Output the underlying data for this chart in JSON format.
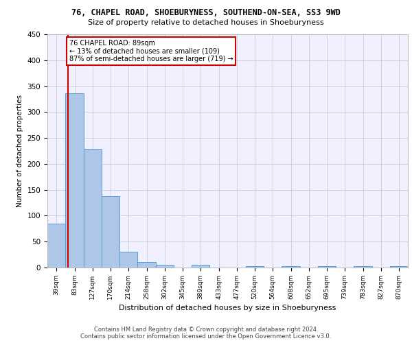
{
  "title_line1": "76, CHAPEL ROAD, SHOEBURYNESS, SOUTHEND-ON-SEA, SS3 9WD",
  "title_line2": "Size of property relative to detached houses in Shoeburyness",
  "xlabel": "Distribution of detached houses by size in Shoeburyness",
  "ylabel": "Number of detached properties",
  "footer_line1": "Contains HM Land Registry data © Crown copyright and database right 2024.",
  "footer_line2": "Contains public sector information licensed under the Open Government Licence v3.0.",
  "annotation_line1": "76 CHAPEL ROAD: 89sqm",
  "annotation_line2": "← 13% of detached houses are smaller (109)",
  "annotation_line3": "87% of semi-detached houses are larger (719) →",
  "property_size": 89,
  "bar_edges": [
    39,
    83,
    127,
    170,
    214,
    258,
    302,
    345,
    389,
    433,
    477,
    520,
    564,
    608,
    652,
    695,
    739,
    783,
    827,
    870,
    914
  ],
  "bar_heights": [
    85,
    336,
    229,
    137,
    30,
    10,
    5,
    0,
    5,
    0,
    0,
    3,
    0,
    3,
    0,
    3,
    0,
    3,
    0,
    3
  ],
  "bar_color": "#aec6e8",
  "bar_edge_color": "#5a9fd4",
  "vline_color": "#cc0000",
  "annotation_box_color": "#cc0000",
  "ylim": [
    0,
    450
  ],
  "yticks": [
    0,
    50,
    100,
    150,
    200,
    250,
    300,
    350,
    400,
    450
  ],
  "bg_color": "#f0f0ff",
  "grid_color": "#ccccdd",
  "fig_width": 6.0,
  "fig_height": 5.0,
  "dpi": 100
}
